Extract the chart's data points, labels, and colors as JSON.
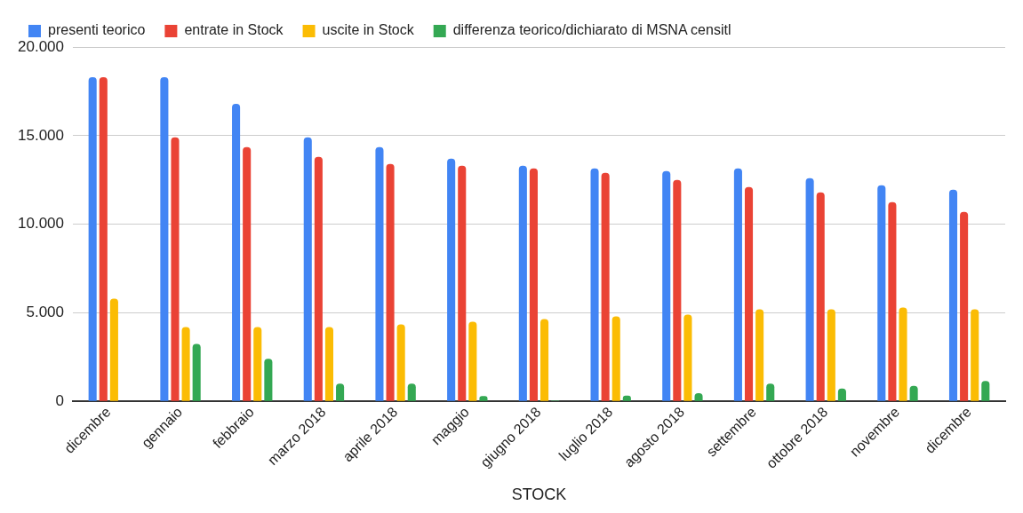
{
  "chart_data": {
    "type": "bar",
    "xlabel": "STOCK",
    "categories": [
      "dicembre",
      "gennaio",
      "febbraio",
      "marzo 2018",
      "aprile 2018",
      "maggio",
      "giugno 2018",
      "luglio 2018",
      "agosto 2018",
      "settembre",
      "ottobre 2018",
      "novembre",
      "dicembre"
    ],
    "series": [
      {
        "name": "presenti teorico",
        "color": "#4285f4",
        "values": [
          18300,
          18300,
          16800,
          14900,
          14350,
          13700,
          13300,
          13150,
          13000,
          13150,
          12600,
          12200,
          11950
        ]
      },
      {
        "name": "entrate in Stock",
        "color": "#ea4335",
        "values": [
          18300,
          14900,
          14350,
          13800,
          13400,
          13300,
          13150,
          12900,
          12500,
          12100,
          11800,
          11250,
          10700
        ]
      },
      {
        "name": "uscite in Stock",
        "color": "#fbbc04",
        "values": [
          5800,
          4200,
          4200,
          4200,
          4350,
          4500,
          4650,
          4800,
          4900,
          5200,
          5200,
          5300,
          5200
        ]
      },
      {
        "name": "differenza teorico/dichiarato di MSNA censitl",
        "color": "#34a853",
        "values": [
          0,
          3250,
          2400,
          1000,
          1000,
          300,
          50,
          330,
          470,
          1000,
          730,
          880,
          1150
        ]
      }
    ],
    "ylim": [
      0,
      20000
    ],
    "yticks": [
      0,
      {
        "value": 5000,
        "label": "5.000"
      },
      {
        "value": 10000,
        "label": "10.000"
      },
      {
        "value": 15000,
        "label": "15.000"
      },
      {
        "value": 20000,
        "label": "20.000"
      }
    ],
    "grid": "y",
    "legend": "top"
  }
}
